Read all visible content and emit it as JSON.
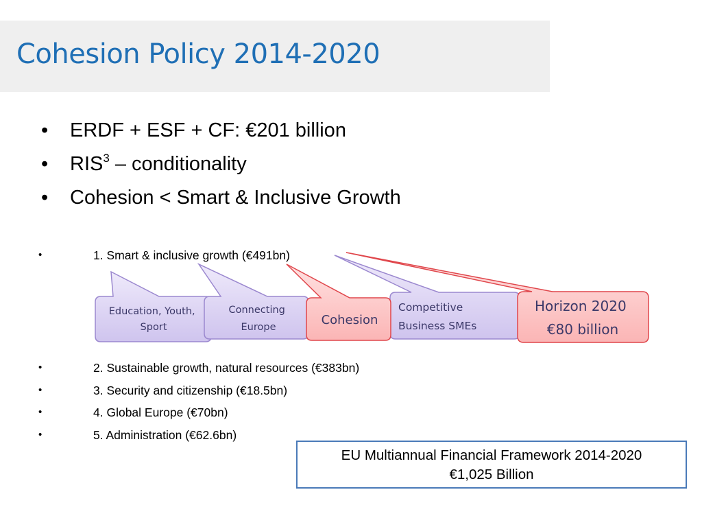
{
  "slide": {
    "title": "Cohesion Policy 2014-2020",
    "bullets": [
      {
        "text": "ERDF + ESF + CF: €201 billion"
      },
      {
        "text": "RIS",
        "sup": "3",
        "suffix": " – conditionality"
      },
      {
        "text": "Cohesion < Smart & Inclusive Growth"
      }
    ],
    "headings": [
      {
        "text": "1. Smart & inclusive growth (€491bn)"
      },
      {
        "text": "2. Sustainable growth, natural resources (€383bn)"
      },
      {
        "text": "3. Security and citizenship (€18.5bn)"
      },
      {
        "text": "4. Global Europe (€70bn)"
      },
      {
        "text": "5. Administration (€62.6bn)"
      }
    ],
    "callouts": [
      {
        "name": "education-youth-sport",
        "lines": [
          "Education, Youth,",
          "Sport"
        ],
        "color": "purple"
      },
      {
        "name": "connecting-europe",
        "lines": [
          "Connecting",
          "Europe"
        ],
        "color": "purple"
      },
      {
        "name": "cohesion",
        "lines": [
          "Cohesion"
        ],
        "color": "red"
      },
      {
        "name": "competitive-business-smes",
        "lines": [
          "Competitive",
          "Business SMEs"
        ],
        "color": "purple"
      },
      {
        "name": "horizon-2020",
        "lines": [
          "Horizon 2020",
          "€80 billion"
        ],
        "color": "red"
      }
    ],
    "framework_box": {
      "line1": "EU Multiannual Financial Framework 2014-2020",
      "line2": "€1,025 Billion"
    }
  },
  "colors": {
    "title": "#1f6fb5",
    "purple_fill": "#dcd4f2",
    "purple_stroke": "#9b88cf",
    "red_fill": "#fdc6c6",
    "red_stroke": "#e0474c",
    "box_border": "#4a7ab8"
  }
}
